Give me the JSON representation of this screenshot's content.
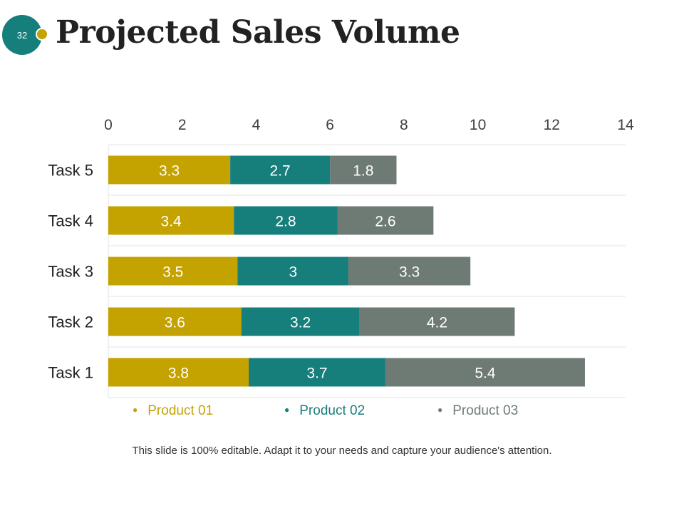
{
  "slide_number": "32",
  "title": "Projected Sales Volume",
  "footer": "This slide is 100% editable. Adapt it to your needs and capture your audience's attention.",
  "colors": {
    "badge": "#167e7b",
    "accent_dot": "#c4a200",
    "product_01": "#c4a200",
    "product_02": "#167e7b",
    "product_03": "#6e7b74",
    "grid": "#e3e3e3"
  },
  "chart_data": {
    "type": "bar",
    "orientation": "horizontal",
    "stacked": true,
    "title": "",
    "xlabel": "",
    "ylabel": "",
    "xlim": [
      0,
      14
    ],
    "x_ticks": [
      "0",
      "2",
      "4",
      "6",
      "8",
      "10",
      "12",
      "14"
    ],
    "axis_position": "top",
    "grid": true,
    "legend_position": "bottom",
    "categories": [
      "Task 5",
      "Task 4",
      "Task 3",
      "Task 2",
      "Task 1"
    ],
    "series": [
      {
        "name": "Product 01",
        "values": [
          3.3,
          3.4,
          3.5,
          3.6,
          3.8
        ],
        "labels": [
          "3.3",
          "3.4",
          "3.5",
          "3.6",
          "3.8"
        ]
      },
      {
        "name": "Product 02",
        "values": [
          2.7,
          2.8,
          3,
          3.2,
          3.7
        ],
        "labels": [
          "2.7",
          "2.8",
          "3",
          "3.2",
          "3.7"
        ]
      },
      {
        "name": "Product 03",
        "values": [
          1.8,
          2.6,
          3.3,
          4.2,
          5.4
        ],
        "labels": [
          "1.8",
          "2.6",
          "3.3",
          "4.2",
          "5.4"
        ]
      }
    ]
  }
}
